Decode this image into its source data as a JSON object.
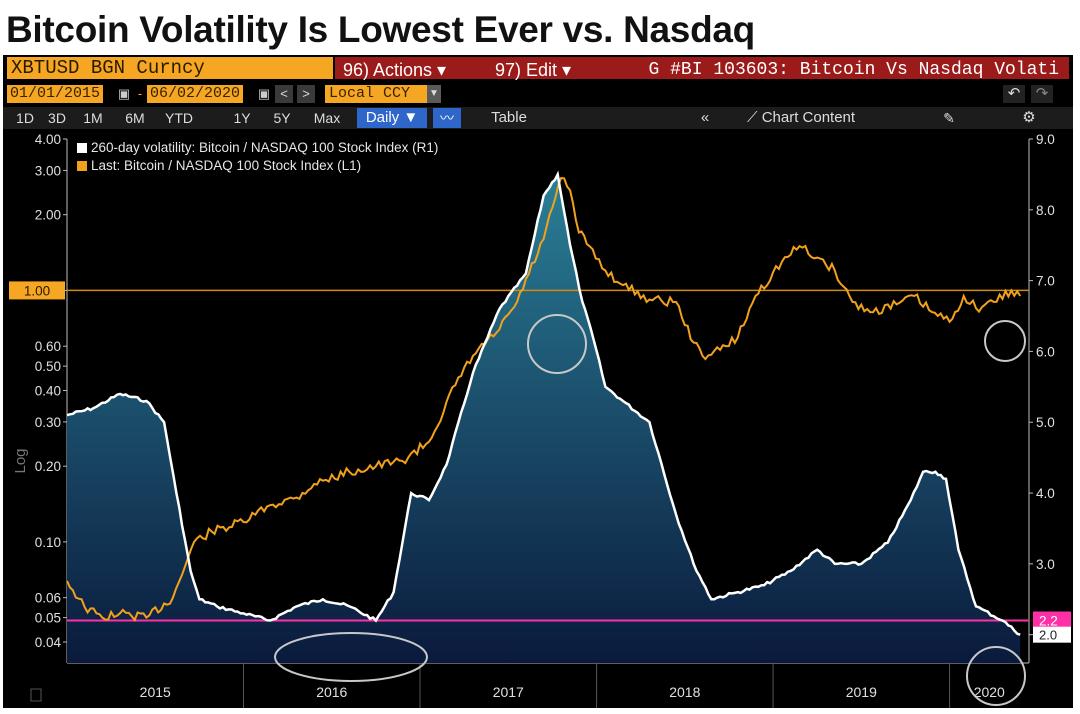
{
  "title": "Bitcoin Volatility Is Lowest Ever vs. Nasdaq",
  "toolbar": {
    "ticker": "XBTUSD BGN Curncy",
    "actions": "96) Actions ▾",
    "edit": "97) Edit ▾",
    "graph_title": "G #BI 103603: Bitcoin Vs Nasdaq Volati",
    "start_date": "01/01/2015",
    "end_date": "06/02/2020",
    "currency": "Local CCY",
    "periods": [
      "1D",
      "3D",
      "1M",
      "6M",
      "YTD",
      "1Y",
      "5Y",
      "Max"
    ],
    "frequency": "Daily ▼",
    "table_label": "Table",
    "chart_content_label": "Chart Content"
  },
  "colors": {
    "volatility": "#ffffff",
    "ratio": "#f2a11c",
    "reference_line": "#ff2fa8",
    "one_line": "#d08a10",
    "fill_top": "#2a7f97",
    "fill_bottom": "#0a1a3c"
  },
  "chart_data": {
    "type": "line",
    "title": "Bitcoin Volatility Is Lowest Ever vs. Nasdaq",
    "x_axis": {
      "labels": [
        "2015",
        "2016",
        "2017",
        "2018",
        "2019",
        "2020"
      ],
      "range": [
        2015.0,
        2020.45
      ]
    },
    "left_axis": {
      "label": "Log",
      "scale": "log",
      "ticks": [
        "4.00",
        "3.00",
        "2.00",
        "1.00",
        "0.60",
        "0.50",
        "0.40",
        "0.30",
        "0.20",
        "0.10",
        "0.06",
        "0.05",
        "0.04"
      ],
      "range": [
        0.033,
        4.0
      ]
    },
    "right_axis": {
      "scale": "linear",
      "ticks": [
        "9.0",
        "8.0",
        "7.0",
        "6.0",
        "5.0",
        "4.0",
        "3.0",
        "2.0"
      ],
      "range": [
        1.6,
        9.0
      ]
    },
    "reference_lines": [
      {
        "axis": "left",
        "value": 1.0,
        "label": "1.00"
      },
      {
        "axis": "right",
        "value": 2.2,
        "label": "2.2"
      }
    ],
    "current_label": "2.0",
    "series": [
      {
        "name": "260-day volatility: Bitcoin / NASDAQ 100 Stock Index (R1)",
        "axis": "right",
        "x": [
          2015.0,
          2015.15,
          2015.3,
          2015.45,
          2015.55,
          2015.62,
          2015.7,
          2015.75,
          2015.85,
          2016.0,
          2016.15,
          2016.3,
          2016.45,
          2016.6,
          2016.75,
          2016.85,
          2016.95,
          2017.05,
          2017.15,
          2017.3,
          2017.45,
          2017.6,
          2017.7,
          2017.78,
          2017.85,
          2017.92,
          2017.98,
          2018.05,
          2018.15,
          2018.3,
          2018.45,
          2018.55,
          2018.65,
          2018.8,
          2018.95,
          2019.1,
          2019.25,
          2019.35,
          2019.5,
          2019.65,
          2019.78,
          2019.85,
          2019.92,
          2019.98,
          2020.05,
          2020.15,
          2020.3,
          2020.4
        ],
        "values": [
          5.1,
          5.2,
          5.4,
          5.3,
          5.0,
          4.0,
          2.9,
          2.5,
          2.4,
          2.3,
          2.2,
          2.4,
          2.5,
          2.4,
          2.2,
          2.6,
          4.0,
          3.9,
          4.4,
          5.7,
          6.6,
          7.1,
          8.2,
          8.5,
          7.5,
          6.7,
          6.2,
          5.5,
          5.3,
          5.0,
          3.7,
          3.0,
          2.5,
          2.6,
          2.7,
          2.9,
          3.2,
          3.0,
          3.0,
          3.3,
          3.9,
          4.3,
          4.3,
          4.2,
          3.2,
          2.4,
          2.2,
          2.0
        ]
      },
      {
        "name": "Last: Bitcoin / NASDAQ 100 Stock Index (L1)",
        "axis": "left",
        "x": [
          2015.0,
          2015.1,
          2015.2,
          2015.3,
          2015.45,
          2015.6,
          2015.72,
          2015.82,
          2016.0,
          2016.15,
          2016.3,
          2016.4,
          2016.6,
          2016.75,
          2016.9,
          2017.05,
          2017.2,
          2017.3,
          2017.45,
          2017.55,
          2017.7,
          2017.8,
          2017.85,
          2017.9,
          2017.96,
          2018.05,
          2018.15,
          2018.3,
          2018.45,
          2018.55,
          2018.6,
          2018.7,
          2018.8,
          2018.9,
          2019.05,
          2019.15,
          2019.25,
          2019.35,
          2019.45,
          2019.55,
          2019.7,
          2019.8,
          2019.9,
          2020.0,
          2020.08,
          2020.15,
          2020.25,
          2020.35,
          2020.4
        ],
        "values": [
          0.07,
          0.055,
          0.05,
          0.052,
          0.05,
          0.06,
          0.1,
          0.11,
          0.12,
          0.14,
          0.15,
          0.17,
          0.19,
          0.2,
          0.21,
          0.25,
          0.42,
          0.55,
          0.7,
          0.9,
          1.6,
          2.8,
          2.5,
          1.7,
          1.5,
          1.2,
          1.05,
          0.92,
          0.9,
          0.62,
          0.55,
          0.58,
          0.65,
          0.95,
          1.3,
          1.5,
          1.35,
          1.2,
          0.9,
          0.82,
          0.88,
          0.95,
          0.82,
          0.75,
          0.95,
          0.85,
          0.9,
          1.0,
          0.95
        ]
      }
    ],
    "annotations": [
      "circle around 2017 crossover",
      "ellipse around 2016 volatility low",
      "circle around 2020 ratio",
      "circle around 2020 volatility low"
    ]
  }
}
